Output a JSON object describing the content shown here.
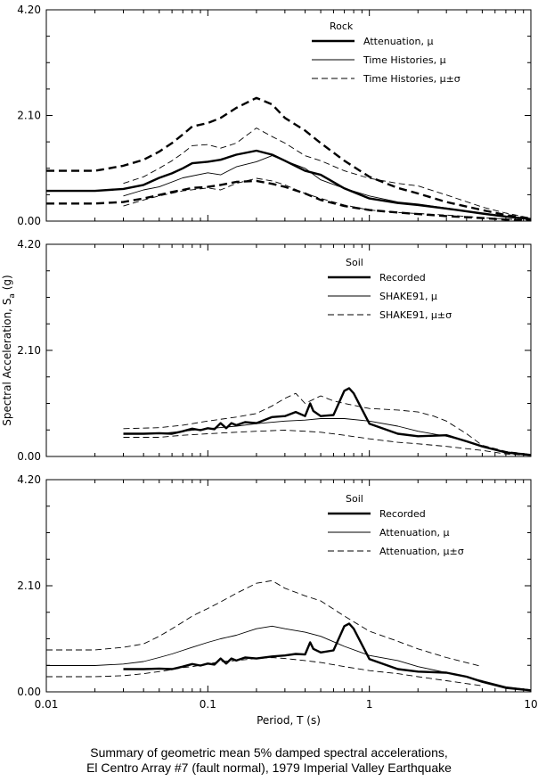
{
  "figure": {
    "shared_ylabel": "Spectral Acceleration, S",
    "shared_ylabel_sub": "a",
    "shared_ylabel_unit": " (g)",
    "xlabel": "Period, T (s)",
    "x_tick_labels": [
      "0.01",
      "0.1",
      "1",
      "10"
    ],
    "y_tick_labels": [
      "0.00",
      "2.10",
      "4.20"
    ]
  },
  "caption": {
    "line1": "Summary of geometric mean 5% damped spectral accelerations,",
    "line2": "El Centro Array #7 (fault normal), 1979 Imperial Valley Earthquake"
  },
  "chart_data": [
    {
      "type": "line",
      "x_scale": "log",
      "xlim": [
        0.01,
        10
      ],
      "ylim": [
        0,
        4.2
      ],
      "yticks": [
        0,
        2.1,
        4.2
      ],
      "legend": {
        "title": "Rock",
        "placement": "top-right",
        "entries": [
          "Attenuation, μ",
          "Time Histories, μ",
          "Time Histories, μ±σ"
        ]
      },
      "series": [
        {
          "name": "Attenuation, μ",
          "style": "thick-solid",
          "x": [
            0.01,
            0.02,
            0.03,
            0.04,
            0.05,
            0.06,
            0.07,
            0.08,
            0.1,
            0.12,
            0.15,
            0.2,
            0.25,
            0.3,
            0.4,
            0.5,
            0.7,
            1,
            1.5,
            2,
            3,
            5,
            7,
            10
          ],
          "y": [
            0.6,
            0.6,
            0.64,
            0.72,
            0.86,
            0.95,
            1.05,
            1.15,
            1.18,
            1.22,
            1.32,
            1.4,
            1.32,
            1.2,
            1.0,
            0.92,
            0.65,
            0.45,
            0.36,
            0.32,
            0.25,
            0.15,
            0.09,
            0.04
          ]
        },
        {
          "name": "Time Histories, μ",
          "style": "thin-solid",
          "x": [
            0.03,
            0.04,
            0.05,
            0.07,
            0.1,
            0.12,
            0.15,
            0.2,
            0.25,
            0.3,
            0.4,
            0.5,
            0.7,
            1,
            1.5,
            2,
            3,
            5,
            7,
            10
          ],
          "y": [
            0.5,
            0.62,
            0.68,
            0.86,
            0.96,
            0.92,
            1.08,
            1.18,
            1.3,
            1.2,
            1.05,
            0.82,
            0.65,
            0.5,
            0.38,
            0.34,
            0.26,
            0.15,
            0.09,
            0.04
          ]
        },
        {
          "name": "Time Histories, μ+σ",
          "style": "thin-dash",
          "x": [
            0.03,
            0.04,
            0.05,
            0.06,
            0.07,
            0.08,
            0.1,
            0.12,
            0.15,
            0.2,
            0.25,
            0.3,
            0.4,
            0.5,
            0.7,
            1,
            1.5,
            2,
            3,
            5,
            7,
            10
          ],
          "y": [
            0.75,
            0.88,
            1.05,
            1.2,
            1.35,
            1.5,
            1.52,
            1.45,
            1.55,
            1.85,
            1.68,
            1.55,
            1.3,
            1.2,
            1.0,
            0.85,
            0.75,
            0.7,
            0.52,
            0.28,
            0.16,
            0.06
          ]
        },
        {
          "name": "Time Histories, μ-σ",
          "style": "thin-dash",
          "x": [
            0.03,
            0.04,
            0.05,
            0.07,
            0.1,
            0.12,
            0.15,
            0.2,
            0.25,
            0.3,
            0.4,
            0.5,
            0.7,
            1,
            1.5,
            2,
            3,
            5,
            7,
            10
          ],
          "y": [
            0.3,
            0.42,
            0.5,
            0.6,
            0.66,
            0.62,
            0.75,
            0.85,
            0.8,
            0.72,
            0.55,
            0.45,
            0.32,
            0.22,
            0.17,
            0.15,
            0.12,
            0.07,
            0.04,
            0.02
          ]
        },
        {
          "name": "Attenuation, μ+σ",
          "style": "thick-dash",
          "x": [
            0.01,
            0.02,
            0.03,
            0.04,
            0.05,
            0.06,
            0.07,
            0.08,
            0.1,
            0.12,
            0.15,
            0.2,
            0.25,
            0.3,
            0.4,
            0.5,
            0.7,
            1,
            1.5,
            2,
            3,
            5,
            7,
            10
          ],
          "y": [
            1.0,
            1.0,
            1.1,
            1.22,
            1.38,
            1.55,
            1.72,
            1.88,
            1.95,
            2.05,
            2.25,
            2.45,
            2.32,
            2.05,
            1.8,
            1.55,
            1.2,
            0.88,
            0.66,
            0.55,
            0.38,
            0.22,
            0.12,
            0.05
          ]
        },
        {
          "name": "Attenuation, μ-σ",
          "style": "thick-dash",
          "x": [
            0.01,
            0.02,
            0.03,
            0.04,
            0.05,
            0.06,
            0.07,
            0.08,
            0.1,
            0.12,
            0.15,
            0.2,
            0.25,
            0.3,
            0.4,
            0.5,
            0.7,
            1,
            1.5,
            2,
            3,
            5,
            7,
            10
          ],
          "y": [
            0.35,
            0.35,
            0.38,
            0.45,
            0.52,
            0.58,
            0.62,
            0.66,
            0.68,
            0.72,
            0.78,
            0.8,
            0.74,
            0.68,
            0.55,
            0.42,
            0.3,
            0.22,
            0.17,
            0.14,
            0.1,
            0.06,
            0.03,
            0.01
          ]
        }
      ]
    },
    {
      "type": "line",
      "x_scale": "log",
      "xlim": [
        0.01,
        10
      ],
      "ylim": [
        0,
        4.2
      ],
      "yticks": [
        0,
        2.1,
        4.2
      ],
      "legend": {
        "title": "Soil",
        "placement": "top-right",
        "entries": [
          "Recorded",
          "SHAKE91, μ",
          "SHAKE91, μ±σ"
        ]
      },
      "series": [
        {
          "name": "Recorded",
          "style": "thick-solid",
          "x": [
            0.03,
            0.04,
            0.05,
            0.06,
            0.07,
            0.08,
            0.09,
            0.1,
            0.11,
            0.12,
            0.13,
            0.14,
            0.15,
            0.17,
            0.2,
            0.25,
            0.3,
            0.35,
            0.4,
            0.43,
            0.45,
            0.5,
            0.6,
            0.7,
            0.75,
            0.8,
            1.0,
            1.5,
            2,
            3,
            4,
            5,
            7,
            10
          ],
          "y": [
            0.45,
            0.45,
            0.46,
            0.45,
            0.5,
            0.55,
            0.52,
            0.56,
            0.54,
            0.66,
            0.56,
            0.66,
            0.62,
            0.68,
            0.66,
            0.78,
            0.8,
            0.88,
            0.8,
            1.05,
            0.9,
            0.8,
            0.82,
            1.3,
            1.35,
            1.25,
            0.65,
            0.45,
            0.4,
            0.42,
            0.3,
            0.2,
            0.08,
            0.03
          ]
        },
        {
          "name": "SHAKE91, μ",
          "style": "thin-solid",
          "x": [
            0.03,
            0.05,
            0.07,
            0.1,
            0.15,
            0.2,
            0.3,
            0.4,
            0.5,
            0.7,
            1.0,
            1.5,
            2,
            3,
            4,
            5,
            7,
            10
          ],
          "y": [
            0.45,
            0.45,
            0.5,
            0.55,
            0.6,
            0.65,
            0.7,
            0.72,
            0.75,
            0.75,
            0.7,
            0.6,
            0.5,
            0.4,
            0.3,
            0.2,
            0.08,
            0.03
          ]
        },
        {
          "name": "SHAKE91, μ+σ",
          "style": "thin-dash",
          "x": [
            0.03,
            0.05,
            0.07,
            0.1,
            0.15,
            0.2,
            0.25,
            0.3,
            0.35,
            0.4,
            0.5,
            0.6,
            0.7,
            1.0,
            1.5,
            2,
            2.5,
            3,
            4,
            5,
            7,
            10
          ],
          "y": [
            0.55,
            0.57,
            0.62,
            0.7,
            0.78,
            0.85,
            1.0,
            1.15,
            1.25,
            1.05,
            1.2,
            1.1,
            1.05,
            0.95,
            0.92,
            0.88,
            0.8,
            0.7,
            0.45,
            0.22,
            0.1,
            0.04
          ]
        },
        {
          "name": "SHAKE91, μ-σ",
          "style": "thin-dash",
          "x": [
            0.03,
            0.05,
            0.07,
            0.1,
            0.15,
            0.2,
            0.3,
            0.4,
            0.5,
            0.7,
            1.0,
            1.5,
            2,
            3,
            5,
            7,
            10
          ],
          "y": [
            0.38,
            0.38,
            0.42,
            0.45,
            0.48,
            0.5,
            0.52,
            0.5,
            0.48,
            0.42,
            0.35,
            0.28,
            0.25,
            0.2,
            0.12,
            0.05,
            0.02
          ]
        }
      ]
    },
    {
      "type": "line",
      "x_scale": "log",
      "xlim": [
        0.01,
        10
      ],
      "ylim": [
        0,
        4.2
      ],
      "yticks": [
        0,
        2.1,
        4.2
      ],
      "legend": {
        "title": "Soil",
        "placement": "top-right",
        "entries": [
          "Recorded",
          "Attenuation, μ",
          "Attenuation, μ±σ"
        ]
      },
      "series": [
        {
          "name": "Recorded",
          "style": "thick-solid",
          "x": [
            0.03,
            0.04,
            0.05,
            0.06,
            0.07,
            0.08,
            0.09,
            0.1,
            0.11,
            0.12,
            0.13,
            0.14,
            0.15,
            0.17,
            0.2,
            0.25,
            0.3,
            0.35,
            0.4,
            0.43,
            0.45,
            0.5,
            0.6,
            0.7,
            0.75,
            0.8,
            1.0,
            1.5,
            2,
            3,
            4,
            5,
            7,
            10
          ],
          "y": [
            0.45,
            0.45,
            0.46,
            0.45,
            0.5,
            0.55,
            0.52,
            0.56,
            0.54,
            0.66,
            0.56,
            0.66,
            0.62,
            0.68,
            0.66,
            0.7,
            0.72,
            0.75,
            0.74,
            0.98,
            0.85,
            0.78,
            0.82,
            1.3,
            1.35,
            1.25,
            0.65,
            0.45,
            0.4,
            0.38,
            0.3,
            0.2,
            0.08,
            0.03
          ]
        },
        {
          "name": "Attenuation, μ",
          "style": "thin-solid",
          "x": [
            0.01,
            0.02,
            0.03,
            0.04,
            0.05,
            0.06,
            0.07,
            0.08,
            0.1,
            0.12,
            0.15,
            0.2,
            0.25,
            0.3,
            0.4,
            0.5,
            0.7,
            1,
            1.5,
            2,
            3,
            5,
            7,
            10
          ],
          "y": [
            0.52,
            0.52,
            0.55,
            0.6,
            0.68,
            0.75,
            0.82,
            0.88,
            0.98,
            1.05,
            1.12,
            1.25,
            1.3,
            1.25,
            1.18,
            1.1,
            0.9,
            0.72,
            0.62,
            0.5,
            0.38,
            0.22,
            0.1,
            0.04
          ]
        },
        {
          "name": "Attenuation, μ+σ",
          "style": "thin-dash",
          "x": [
            0.01,
            0.02,
            0.03,
            0.04,
            0.05,
            0.06,
            0.07,
            0.08,
            0.1,
            0.12,
            0.15,
            0.2,
            0.25,
            0.3,
            0.4,
            0.5,
            0.7,
            1,
            1.5,
            2,
            3,
            5
          ],
          "y": [
            0.83,
            0.83,
            0.88,
            0.95,
            1.1,
            1.25,
            1.38,
            1.5,
            1.65,
            1.78,
            1.95,
            2.15,
            2.2,
            2.05,
            1.9,
            1.8,
            1.5,
            1.2,
            1.0,
            0.85,
            0.68,
            0.5
          ]
        },
        {
          "name": "Attenuation, μ-σ",
          "style": "thin-dash",
          "x": [
            0.01,
            0.02,
            0.03,
            0.04,
            0.05,
            0.06,
            0.07,
            0.08,
            0.1,
            0.12,
            0.15,
            0.2,
            0.25,
            0.3,
            0.4,
            0.5,
            0.7,
            1,
            1.5,
            2,
            3,
            5
          ],
          "y": [
            0.3,
            0.3,
            0.32,
            0.36,
            0.4,
            0.44,
            0.48,
            0.5,
            0.55,
            0.6,
            0.62,
            0.66,
            0.68,
            0.66,
            0.62,
            0.58,
            0.5,
            0.42,
            0.36,
            0.3,
            0.22,
            0.12
          ]
        }
      ]
    }
  ]
}
